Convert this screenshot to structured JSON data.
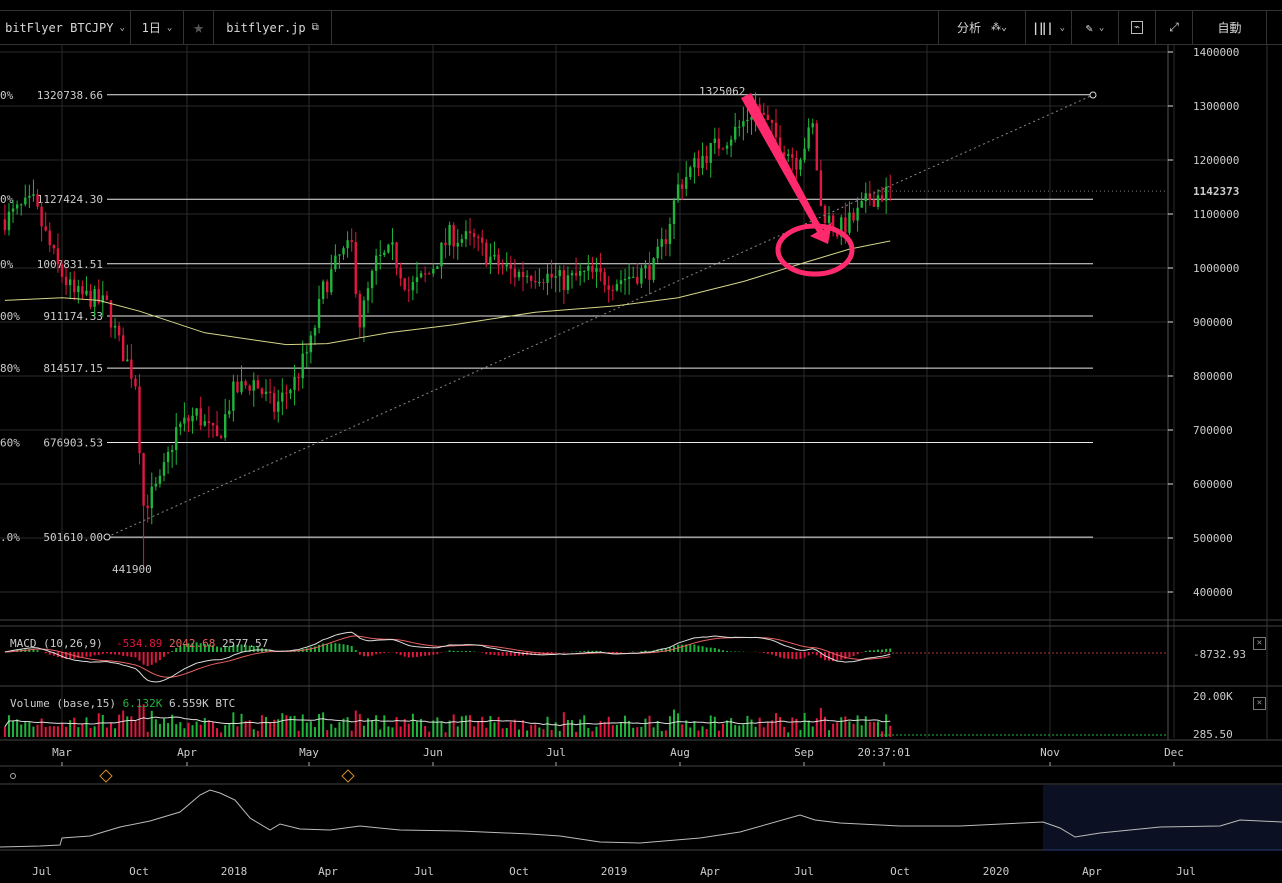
{
  "toolbar": {
    "symbol": "bitFlyer BTCJPY",
    "interval": "1日",
    "favorite_icon": "star-icon",
    "site": "bitflyer.jp",
    "analysis": "分析",
    "auto": "自動"
  },
  "colors": {
    "up": "#1fb53b",
    "down": "#e0173f",
    "ma": "#d6d68a",
    "annotation": "#ff2a6d",
    "background": "#000000",
    "grid": "#2a2a2a"
  },
  "price_axis": {
    "ticks": [
      "1400000",
      "1300000",
      "1200000",
      "1100000",
      "1000000",
      "900000",
      "800000",
      "700000",
      "600000",
      "500000",
      "400000"
    ],
    "last_price": "1142373"
  },
  "fib_levels": [
    {
      "pct": "0%",
      "value": "1320738.66",
      "price": 1320738.66
    },
    {
      "pct": "0%",
      "value": "1127424.30",
      "price": 1127424.3
    },
    {
      "pct": "0%",
      "value": "1007831.51",
      "price": 1007831.51
    },
    {
      "pct": "00%",
      "value": "911174.33",
      "price": 911174.33
    },
    {
      "pct": "80%",
      "value": "814517.15",
      "price": 814517.15
    },
    {
      "pct": "60%",
      "value": "676903.53",
      "price": 676903.53
    },
    {
      "pct": ".0%",
      "value": "501610.00",
      "price": 501610.0
    }
  ],
  "annotations": {
    "high": "1325062",
    "low": "441900"
  },
  "price_path": [
    [
      "02-15",
      1090000
    ],
    [
      "02-19",
      1110000
    ],
    [
      "02-22",
      1120000
    ],
    [
      "02-25",
      1060000
    ],
    [
      "02-28",
      1000000
    ],
    [
      "03-04",
      950000
    ],
    [
      "03-08",
      945000
    ],
    [
      "03-12",
      930000
    ],
    [
      "03-15",
      860000
    ],
    [
      "03-19",
      790000
    ],
    [
      "03-21",
      560000
    ],
    [
      "03-25",
      600000
    ],
    [
      "03-29",
      700000
    ],
    [
      "04-03",
      730000
    ],
    [
      "04-08",
      680000
    ],
    [
      "04-12",
      770000
    ],
    [
      "04-17",
      790000
    ],
    [
      "04-22",
      740000
    ],
    [
      "04-27",
      790000
    ],
    [
      "05-01",
      860000
    ],
    [
      "05-04",
      960000
    ],
    [
      "05-08",
      1020000
    ],
    [
      "05-11",
      1040000
    ],
    [
      "05-13",
      900000
    ],
    [
      "05-17",
      1010000
    ],
    [
      "05-21",
      1030000
    ],
    [
      "05-25",
      960000
    ],
    [
      "05-30",
      990000
    ],
    [
      "06-04",
      1060000
    ],
    [
      "06-10",
      1050000
    ],
    [
      "06-15",
      1010000
    ],
    [
      "06-20",
      990000
    ],
    [
      "06-26",
      990000
    ],
    [
      "07-02",
      975000
    ],
    [
      "07-08",
      990000
    ],
    [
      "07-14",
      975000
    ],
    [
      "07-20",
      990000
    ],
    [
      "07-24",
      1000000
    ],
    [
      "07-27",
      1060000
    ],
    [
      "07-30",
      1150000
    ],
    [
      "08-04",
      1200000
    ],
    [
      "08-09",
      1230000
    ],
    [
      "08-14",
      1260000
    ],
    [
      "08-18",
      1300000
    ],
    [
      "08-23",
      1240000
    ],
    [
      "08-28",
      1200000
    ],
    [
      "09-01",
      1260000
    ],
    [
      "09-03",
      1110000
    ],
    [
      "09-07",
      1070000
    ],
    [
      "09-11",
      1090000
    ],
    [
      "09-15",
      1130000
    ],
    [
      "09-20",
      1142373
    ]
  ],
  "ma_path": [
    [
      "02-15",
      940000
    ],
    [
      "03-01",
      945000
    ],
    [
      "03-10",
      940000
    ],
    [
      "03-20",
      920000
    ],
    [
      "04-05",
      880000
    ],
    [
      "04-25",
      858000
    ],
    [
      "05-05",
      860000
    ],
    [
      "05-20",
      880000
    ],
    [
      "06-05",
      895000
    ],
    [
      "06-25",
      918000
    ],
    [
      "07-15",
      930000
    ],
    [
      "07-30",
      945000
    ],
    [
      "08-15",
      975000
    ],
    [
      "08-30",
      1010000
    ],
    [
      "09-10",
      1035000
    ],
    [
      "09-20",
      1050000
    ]
  ],
  "macd": {
    "label": "MACD (10,26,9)",
    "v1": "-534.89",
    "v2": "2042.68",
    "v3": "2577.57",
    "axis_value": "-8732.93"
  },
  "volume": {
    "label": "Volume (base,15)",
    "v1": "6.132K",
    "v2": "6.559K BTC",
    "axis_max": "20.00K",
    "axis_min": "285.50"
  },
  "time_axis": {
    "labels": [
      "Mar",
      "Apr",
      "May",
      "Jun",
      "Jul",
      "Aug",
      "Sep",
      "Nov",
      "Dec"
    ],
    "cursor_time": "20:37:01"
  },
  "navigator": {
    "labels": [
      "Jul",
      "Oct",
      "2018",
      "Apr",
      "Jul",
      "Oct",
      "2019",
      "Apr",
      "Jul",
      "Oct",
      "2020",
      "Apr",
      "Jul"
    ]
  }
}
